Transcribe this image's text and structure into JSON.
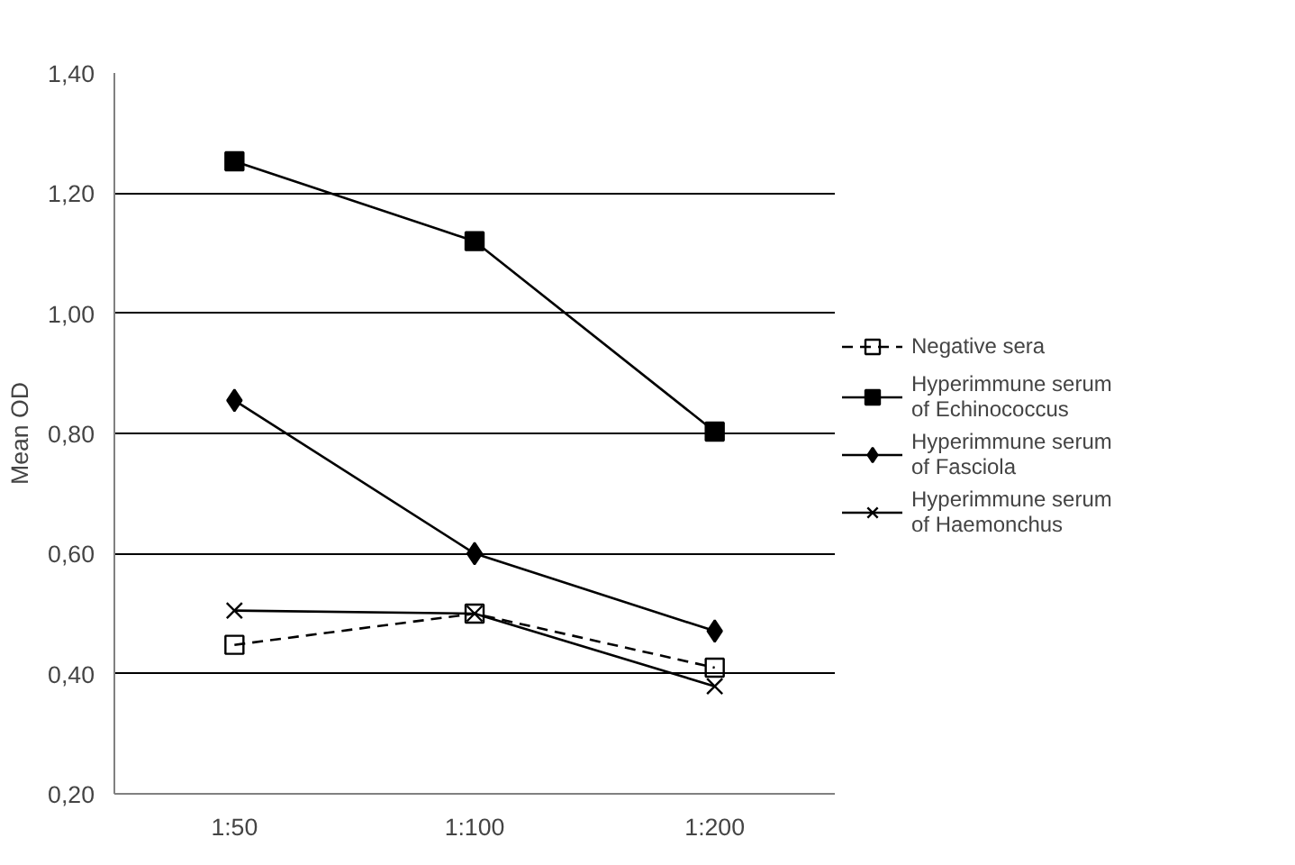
{
  "chart_data": {
    "type": "line",
    "ylabel": "Mean OD",
    "categories": [
      "1:50",
      "1:100",
      "1:200"
    ],
    "ylim": [
      0.2,
      1.4
    ],
    "yticks": [
      {
        "value": 0.2,
        "label": "0,20"
      },
      {
        "value": 0.4,
        "label": "0,40"
      },
      {
        "value": 0.6,
        "label": "0,60"
      },
      {
        "value": 0.8,
        "label": "0,80"
      },
      {
        "value": 1.0,
        "label": "1,00"
      },
      {
        "value": 1.2,
        "label": "1,20"
      },
      {
        "value": 1.4,
        "label": "1,40"
      }
    ],
    "grid": "y",
    "legend": "right",
    "series": [
      {
        "name": "Negative sera",
        "color": "#000000",
        "marker": "square_open",
        "line_style": "dashed",
        "values": [
          0.448,
          0.5,
          0.41
        ]
      },
      {
        "name": "Hyperimmune serum of Echinococcus",
        "color": "#000000",
        "marker": "square",
        "line_style": "solid",
        "values": [
          1.253,
          1.12,
          0.803
        ]
      },
      {
        "name": "Hyperimmune serum of Fasciola",
        "color": "#000000",
        "marker": "diamond",
        "line_style": "solid",
        "values": [
          0.855,
          0.6,
          0.471
        ]
      },
      {
        "name": "Hyperimmune serum of Haemonchus",
        "color": "#000000",
        "marker": "cross",
        "line_style": "solid",
        "values": [
          0.505,
          0.5,
          0.379
        ]
      }
    ]
  }
}
